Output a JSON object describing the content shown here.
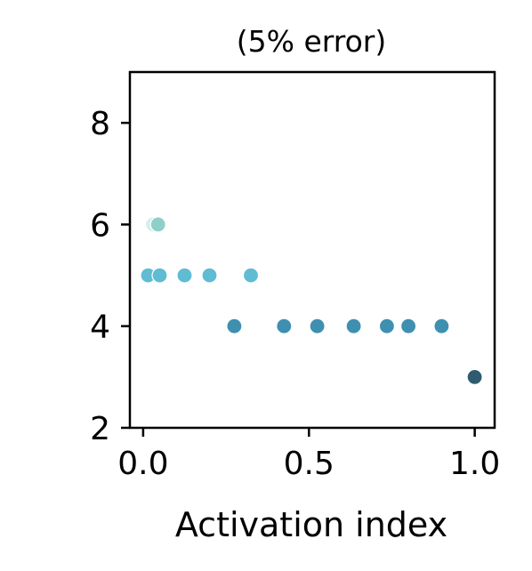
{
  "chart_data": {
    "type": "scatter",
    "title": "(5% error)",
    "xlabel": "Activation index",
    "ylabel": "",
    "xlim": [
      -0.04,
      1.06
    ],
    "ylim": [
      2,
      9
    ],
    "xticks": [
      0.0,
      0.5,
      1.0
    ],
    "xtick_labels": [
      "0.0",
      "0.5",
      "1.0"
    ],
    "yticks": [
      2,
      4,
      6,
      8
    ],
    "ytick_labels": [
      "2",
      "4",
      "6",
      "8"
    ],
    "grid": false,
    "points": [
      {
        "x": 0.03,
        "y": 6,
        "color": "#d4efec"
      },
      {
        "x": 0.045,
        "y": 6,
        "color": "#8fcfca"
      },
      {
        "x": 0.015,
        "y": 5,
        "color": "#5fbcd3"
      },
      {
        "x": 0.05,
        "y": 5,
        "color": "#5fbcd3"
      },
      {
        "x": 0.125,
        "y": 5,
        "color": "#5fbcd3"
      },
      {
        "x": 0.2,
        "y": 5,
        "color": "#5fbcd3"
      },
      {
        "x": 0.325,
        "y": 5,
        "color": "#5fbcd3"
      },
      {
        "x": 0.275,
        "y": 4,
        "color": "#3f8fb0"
      },
      {
        "x": 0.425,
        "y": 4,
        "color": "#3f8fb0"
      },
      {
        "x": 0.525,
        "y": 4,
        "color": "#3f8fb0"
      },
      {
        "x": 0.635,
        "y": 4,
        "color": "#3f8fb0"
      },
      {
        "x": 0.735,
        "y": 4,
        "color": "#3f8fb0"
      },
      {
        "x": 0.8,
        "y": 4,
        "color": "#3f8fb0"
      },
      {
        "x": 0.9,
        "y": 4,
        "color": "#3f8fb0"
      },
      {
        "x": 1.0,
        "y": 3,
        "color": "#2f5b70"
      }
    ]
  }
}
